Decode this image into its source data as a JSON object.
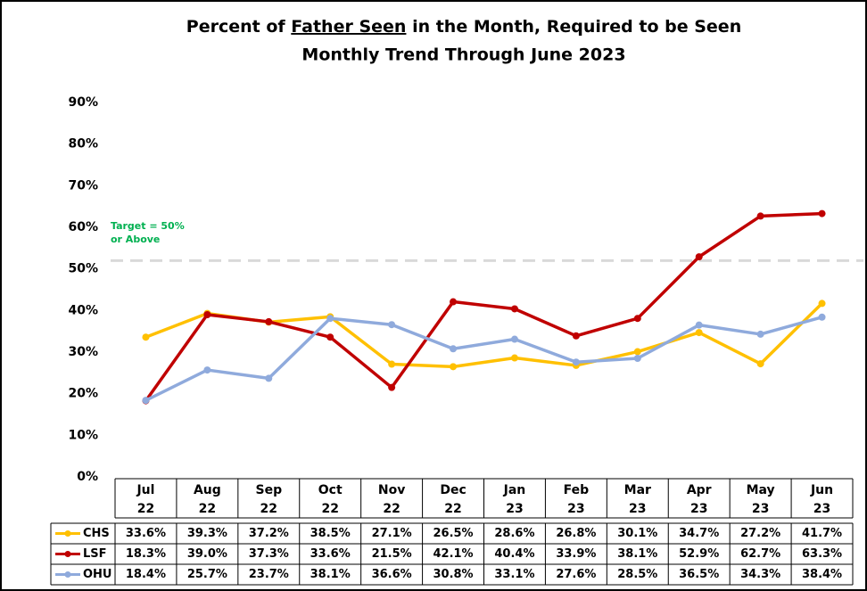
{
  "chart_data": {
    "type": "line",
    "title": [
      "Percent of",
      "Father Seen",
      "in the Month, Required to be Seen"
    ],
    "title_underlined": 1,
    "subtitle": "Monthly Trend Through June 2023",
    "categories": [
      "Jul\n22",
      "Aug\n22",
      "Sep\n22",
      "Oct\n22",
      "Nov\n22",
      "Dec\n22",
      "Jan\n23",
      "Feb\n23",
      "Mar\n23",
      "Apr\n23",
      "May\n23",
      "Jun\n23"
    ],
    "series": [
      {
        "name": "CHS",
        "color": "#ffc000",
        "values": [
          33.6,
          39.3,
          37.2,
          38.5,
          27.1,
          26.5,
          28.6,
          26.8,
          30.1,
          34.7,
          27.2,
          41.7
        ],
        "value_labels": [
          "33.6%",
          "39.3%",
          "37.2%",
          "38.5%",
          "27.1%",
          "26.5%",
          "28.6%",
          "26.8%",
          "30.1%",
          "34.7%",
          "27.2%",
          "41.7%"
        ]
      },
      {
        "name": "LSF",
        "color": "#c00000",
        "values": [
          18.3,
          39.0,
          37.3,
          33.6,
          21.5,
          42.1,
          40.4,
          33.9,
          38.1,
          52.9,
          62.7,
          63.3
        ],
        "value_labels": [
          "18.3%",
          "39.0%",
          "37.3%",
          "33.6%",
          "21.5%",
          "42.1%",
          "40.4%",
          "33.9%",
          "38.1%",
          "52.9%",
          "62.7%",
          "63.3%"
        ]
      },
      {
        "name": "OHU",
        "color": "#8faadc",
        "values": [
          18.4,
          25.7,
          23.7,
          38.1,
          36.6,
          30.8,
          33.1,
          27.6,
          28.5,
          36.5,
          34.3,
          38.4
        ],
        "value_labels": [
          "18.4%",
          "25.7%",
          "23.7%",
          "38.1%",
          "36.6%",
          "30.8%",
          "33.1%",
          "27.6%",
          "28.5%",
          "36.5%",
          "34.3%",
          "38.4%"
        ]
      }
    ],
    "ylim": [
      0,
      90
    ],
    "yticks": [
      {
        "value": 0,
        "label": "0%"
      },
      {
        "value": 10,
        "label": "10%"
      },
      {
        "value": 20,
        "label": "20%"
      },
      {
        "value": 30,
        "label": "30%"
      },
      {
        "value": 40,
        "label": "40%"
      },
      {
        "value": 50,
        "label": "50%"
      },
      {
        "value": 60,
        "label": "60%"
      },
      {
        "value": 70,
        "label": "70%"
      },
      {
        "value": 80,
        "label": "80%"
      },
      {
        "value": 90,
        "label": "90%"
      }
    ],
    "grid": false,
    "target": {
      "text": "Target = 50%\nor Above",
      "value": 52,
      "color": "#00b050",
      "line_color": "#d9d9d9"
    }
  }
}
